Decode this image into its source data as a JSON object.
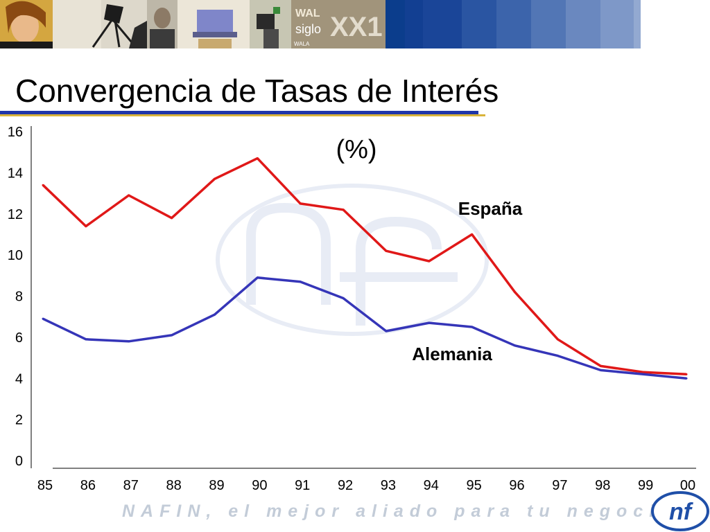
{
  "header": {
    "photos": [
      "woman-photo",
      "camera-photo",
      "phone-man-photo",
      "laptop-photo",
      "camera-operator-photo",
      "siglo-xxi-photo"
    ],
    "photo_text": [
      "WAL",
      "siglo",
      "XX1",
      "WALA"
    ],
    "band_colors": [
      "#0b3d8c",
      "#123f92",
      "#1a4598",
      "#2a55a2",
      "#3c64ab",
      "#5276b5",
      "#6a88bf",
      "#7e98c8",
      "#93a9d1"
    ]
  },
  "slide": {
    "title": "Convergencia de Tasas de Interés"
  },
  "chart_data": {
    "type": "line",
    "title": "(%)",
    "x": [
      "85",
      "86",
      "87",
      "88",
      "89",
      "90",
      "91",
      "92",
      "93",
      "94",
      "95",
      "96",
      "97",
      "98",
      "99",
      "00"
    ],
    "ylim": [
      0,
      16
    ],
    "yticks": [
      "0",
      "2",
      "4",
      "6",
      "8",
      "10",
      "12",
      "14",
      "16"
    ],
    "grid": false,
    "series": [
      {
        "name": "España",
        "color": "#e01818",
        "values": [
          13.4,
          11.4,
          12.9,
          11.8,
          13.7,
          14.7,
          12.5,
          12.2,
          10.2,
          9.7,
          11.0,
          8.2,
          5.9,
          4.6,
          4.3,
          4.2
        ]
      },
      {
        "name": "Alemania",
        "color": "#3535b8",
        "values": [
          6.9,
          5.9,
          5.8,
          6.1,
          7.1,
          8.9,
          8.7,
          7.9,
          6.3,
          6.7,
          6.5,
          5.6,
          5.1,
          4.4,
          4.2,
          4.0
        ]
      }
    ]
  },
  "footer": {
    "slogan": "NAFIN, el mejor aliado para tu negocio",
    "logo_text": "nf"
  }
}
